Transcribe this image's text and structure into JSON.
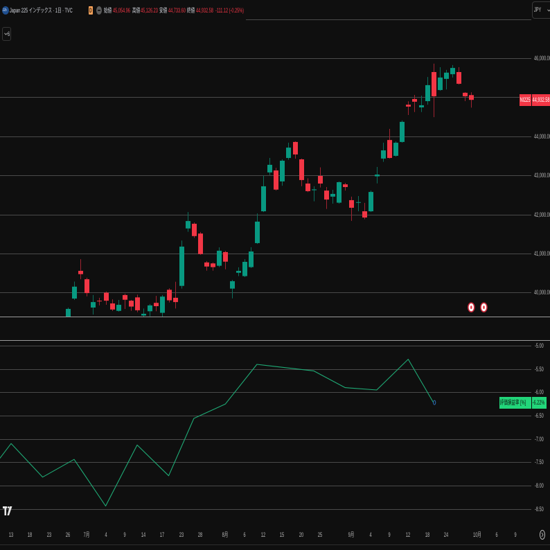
{
  "legend": {
    "symbol_logo_text": "225",
    "title": "Japan 225 インデックス · 1日 · TVC",
    "badge": "D",
    "ohlc": [
      {
        "label": "始値",
        "value": "45,054.96"
      },
      {
        "label": "高値",
        "value": "45,126.23"
      },
      {
        "label": "安値",
        "value": "44,733.60"
      },
      {
        "label": "終値",
        "value": "44,932.58"
      }
    ],
    "change": "-111.12 (-0.25%)",
    "indicator_count": "6"
  },
  "toolbar": {
    "currency": "JPY"
  },
  "icons": {
    "symbol_logo": "japan-225-logo-icon",
    "delayed_badge": "delayed-data-badge",
    "market_status": "market-closed-icon",
    "indicator_toggle": "chevron-down-icon",
    "currency_dropdown": "chevron-down-icon",
    "brand": "tradingview-logo-icon",
    "time_settings": "time-settings-icon",
    "events": "event-marker-icon"
  },
  "colors": {
    "background": "#0f0f0f",
    "up": "#089981",
    "down": "#f23645",
    "up_wick": "#0b6e5c",
    "down_wick": "#a02330",
    "grid": "#4a4a4a",
    "separator": "#9b9b9b",
    "axis_text": "#b8b8b8",
    "pnl_line": "#1fab76",
    "pnl_tag": "#22d67a",
    "last_point_marker": "#2f6fb8",
    "event_marker": "#c62838"
  },
  "chart_data": [
    {
      "type": "candlestick",
      "title": "Japan 225 インデックス · 1日 · TVC",
      "symbol_tag": "NI225",
      "last_price": 44932.58,
      "last_price_label": "44,932.58",
      "ylim": [
        39384,
        47490
      ],
      "grid": true,
      "legend_position": "top-left",
      "gridlines": [
        47000,
        46000,
        45000,
        44000,
        43000,
        42000,
        41000,
        40000
      ],
      "y_tick_labels": [
        {
          "value": 46000,
          "label": "46,000.00"
        },
        {
          "value": 45000,
          "label": "45,000.00"
        },
        {
          "value": 44000,
          "label": "44,000.00"
        },
        {
          "value": 43000,
          "label": "43,000.00"
        },
        {
          "value": 42000,
          "label": "42,000.00"
        },
        {
          "value": 41000,
          "label": "41,000.00"
        },
        {
          "value": 40000,
          "label": "40,000.00"
        }
      ],
      "x_ticks": [
        {
          "date": "2025-06-13",
          "label": "13"
        },
        {
          "date": "2025-06-18",
          "label": "18"
        },
        {
          "date": "2025-06-23",
          "label": "23"
        },
        {
          "date": "2025-06-26",
          "label": "26"
        },
        {
          "date": "2025-07-01",
          "label": "7月"
        },
        {
          "date": "2025-07-04",
          "label": "4"
        },
        {
          "date": "2025-07-09",
          "label": "9"
        },
        {
          "date": "2025-07-14",
          "label": "14"
        },
        {
          "date": "2025-07-17",
          "label": "17"
        },
        {
          "date": "2025-07-23",
          "label": "23"
        },
        {
          "date": "2025-07-28",
          "label": "28"
        },
        {
          "date": "2025-08-01",
          "label": "8月"
        },
        {
          "date": "2025-08-06",
          "label": "6"
        },
        {
          "date": "2025-08-12",
          "label": "12"
        },
        {
          "date": "2025-08-15",
          "label": "15"
        },
        {
          "date": "2025-08-20",
          "label": "20"
        },
        {
          "date": "2025-08-25",
          "label": "25"
        },
        {
          "date": "2025-09-01",
          "label": "9月"
        },
        {
          "date": "2025-09-04",
          "label": "4"
        },
        {
          "date": "2025-09-09",
          "label": "9"
        },
        {
          "date": "2025-09-12",
          "label": "12"
        },
        {
          "date": "2025-09-18",
          "label": "18"
        },
        {
          "date": "2025-09-24",
          "label": "24"
        },
        {
          "date": "2025-10-01",
          "label": "10月"
        },
        {
          "date": "2025-10-06",
          "label": "6"
        },
        {
          "date": "2025-10-09",
          "label": "9"
        }
      ],
      "candle_fields": [
        "date",
        "open",
        "high",
        "low",
        "close"
      ],
      "candles": [
        [
          "2025-06-26",
          39330,
          39615,
          39250,
          39580
        ],
        [
          "2025-06-27",
          39845,
          40280,
          39810,
          40150
        ],
        [
          "2025-06-30",
          40555,
          40855,
          40340,
          40470
        ],
        [
          "2025-07-01",
          40340,
          40380,
          39900,
          39985
        ],
        [
          "2025-07-02",
          39615,
          39935,
          39435,
          39755
        ],
        [
          "2025-07-03",
          39790,
          39865,
          39670,
          39775
        ],
        [
          "2025-07-04",
          39995,
          40025,
          39685,
          39790
        ],
        [
          "2025-07-07",
          39720,
          39825,
          39525,
          39565
        ],
        [
          "2025-07-08",
          39530,
          39810,
          39510,
          39685
        ],
        [
          "2025-07-09",
          39935,
          39970,
          39580,
          39815
        ],
        [
          "2025-07-10",
          39790,
          39810,
          39530,
          39640
        ],
        [
          "2025-07-11",
          39875,
          39945,
          39495,
          39545
        ],
        [
          "2025-07-14",
          39410,
          39590,
          39360,
          39455
        ],
        [
          "2025-07-15",
          39520,
          39705,
          39390,
          39670
        ],
        [
          "2025-07-16",
          39735,
          39915,
          39520,
          39650
        ],
        [
          "2025-07-17",
          39480,
          39935,
          39385,
          39895
        ],
        [
          "2025-07-18",
          40070,
          40110,
          39745,
          39800
        ],
        [
          "2025-07-22",
          39865,
          40275,
          39590,
          39755
        ],
        [
          "2025-07-23",
          40170,
          41330,
          40100,
          41175
        ],
        [
          "2025-07-24",
          41640,
          42060,
          41555,
          41830
        ],
        [
          "2025-07-25",
          41760,
          41795,
          41400,
          41445
        ],
        [
          "2025-07-28",
          41510,
          41550,
          40965,
          40985
        ],
        [
          "2025-07-29",
          40770,
          40805,
          40560,
          40665
        ],
        [
          "2025-07-30",
          40745,
          40770,
          40560,
          40650
        ],
        [
          "2025-07-31",
          40685,
          41155,
          40650,
          41070
        ],
        [
          "2025-08-01",
          41035,
          41065,
          40595,
          40790
        ],
        [
          "2025-08-04",
          40100,
          40325,
          39850,
          40290
        ],
        [
          "2025-08-05",
          40505,
          40645,
          40420,
          40555
        ],
        [
          "2025-08-06",
          40420,
          40855,
          40395,
          40785
        ],
        [
          "2025-08-07",
          40650,
          41160,
          40625,
          41050
        ],
        [
          "2025-08-08",
          41265,
          42025,
          41245,
          41815
        ],
        [
          "2025-08-12",
          42080,
          42995,
          42060,
          42720
        ],
        [
          "2025-08-13",
          43075,
          43445,
          43010,
          43270
        ],
        [
          "2025-08-14",
          43125,
          43190,
          42610,
          42635
        ],
        [
          "2025-08-15",
          42845,
          43410,
          42735,
          43375
        ],
        [
          "2025-08-18",
          43445,
          43835,
          43400,
          43710
        ],
        [
          "2025-08-19",
          43855,
          43870,
          43425,
          43535
        ],
        [
          "2025-08-20",
          43410,
          43430,
          42720,
          42880
        ],
        [
          "2025-08-21",
          42790,
          42925,
          42570,
          42595
        ],
        [
          "2025-08-22",
          42620,
          42720,
          42335,
          42640
        ],
        [
          "2025-08-25",
          42985,
          43205,
          42690,
          42790
        ],
        [
          "2025-08-26",
          42610,
          42700,
          42140,
          42380
        ],
        [
          "2025-08-27",
          42455,
          42630,
          42275,
          42525
        ],
        [
          "2025-08-28",
          42300,
          42845,
          42275,
          42825
        ],
        [
          "2025-08-29",
          42770,
          42805,
          42610,
          42700
        ],
        [
          "2025-09-01",
          42365,
          42455,
          41835,
          42170
        ],
        [
          "2025-09-02",
          42300,
          42470,
          42080,
          42315
        ],
        [
          "2025-09-03",
          42080,
          42295,
          41875,
          41920
        ],
        [
          "2025-09-04",
          42080,
          42610,
          42060,
          42575
        ],
        [
          "2025-09-05",
          42975,
          43215,
          42795,
          43020
        ],
        [
          "2025-09-08",
          43430,
          43835,
          43345,
          43640
        ],
        [
          "2025-09-09",
          43905,
          44190,
          43430,
          43445
        ],
        [
          "2025-09-10",
          43500,
          43870,
          43480,
          43835
        ],
        [
          "2025-09-11",
          43855,
          44405,
          43835,
          44370
        ],
        [
          "2025-09-12",
          44810,
          44895,
          44545,
          44760
        ],
        [
          "2025-09-16",
          44955,
          45060,
          44620,
          44885
        ],
        [
          "2025-09-17",
          44740,
          45040,
          44620,
          44795
        ],
        [
          "2025-09-18",
          44900,
          45520,
          44810,
          45310
        ],
        [
          "2025-09-19",
          45645,
          45860,
          44490,
          45025
        ],
        [
          "2025-09-22",
          45185,
          45770,
          45165,
          45505
        ],
        [
          "2025-09-24",
          45470,
          45700,
          45200,
          45630
        ],
        [
          "2025-09-25",
          45590,
          45825,
          45505,
          45750
        ],
        [
          "2025-09-26",
          45645,
          45770,
          45325,
          45345
        ],
        [
          "2025-09-29",
          45115,
          45130,
          44900,
          45025
        ],
        [
          "2025-09-30",
          45054.96,
          45126.23,
          44733.6,
          44932.58
        ]
      ],
      "event_markers": [
        "2025-09-30",
        "2025-10-02"
      ]
    },
    {
      "type": "line",
      "title": "評価損益率 [%]",
      "ylabel": "評価損益率 [%]",
      "last_value_label": "-6.22%",
      "ylim": [
        -8.73,
        -4.88
      ],
      "grid": true,
      "y_tick_labels": [
        {
          "value": -5.0,
          "label": "-5.00"
        },
        {
          "value": -5.5,
          "label": "-5.50"
        },
        {
          "value": -6.0,
          "label": "-6.00"
        },
        {
          "value": -6.5,
          "label": "-6.50"
        },
        {
          "value": -7.0,
          "label": "-7.00"
        },
        {
          "value": -7.5,
          "label": "-7.50"
        },
        {
          "value": -8.0,
          "label": "-8.00"
        },
        {
          "value": -8.5,
          "label": "-8.50"
        }
      ],
      "points": [
        [
          "2025-06-06",
          -7.99
        ],
        [
          "2025-06-13",
          -7.1
        ],
        [
          "2025-06-20",
          -7.82
        ],
        [
          "2025-06-27",
          -7.44
        ],
        [
          "2025-07-04",
          -8.44
        ],
        [
          "2025-07-11",
          -7.13
        ],
        [
          "2025-07-18",
          -7.79
        ],
        [
          "2025-07-25",
          -6.56
        ],
        [
          "2025-08-01",
          -6.25
        ],
        [
          "2025-08-08",
          -5.4
        ],
        [
          "2025-08-22",
          -5.54
        ],
        [
          "2025-08-29",
          -5.9
        ],
        [
          "2025-09-05",
          -5.95
        ],
        [
          "2025-09-12",
          -5.29
        ],
        [
          "2025-09-19",
          -6.22
        ]
      ]
    }
  ]
}
